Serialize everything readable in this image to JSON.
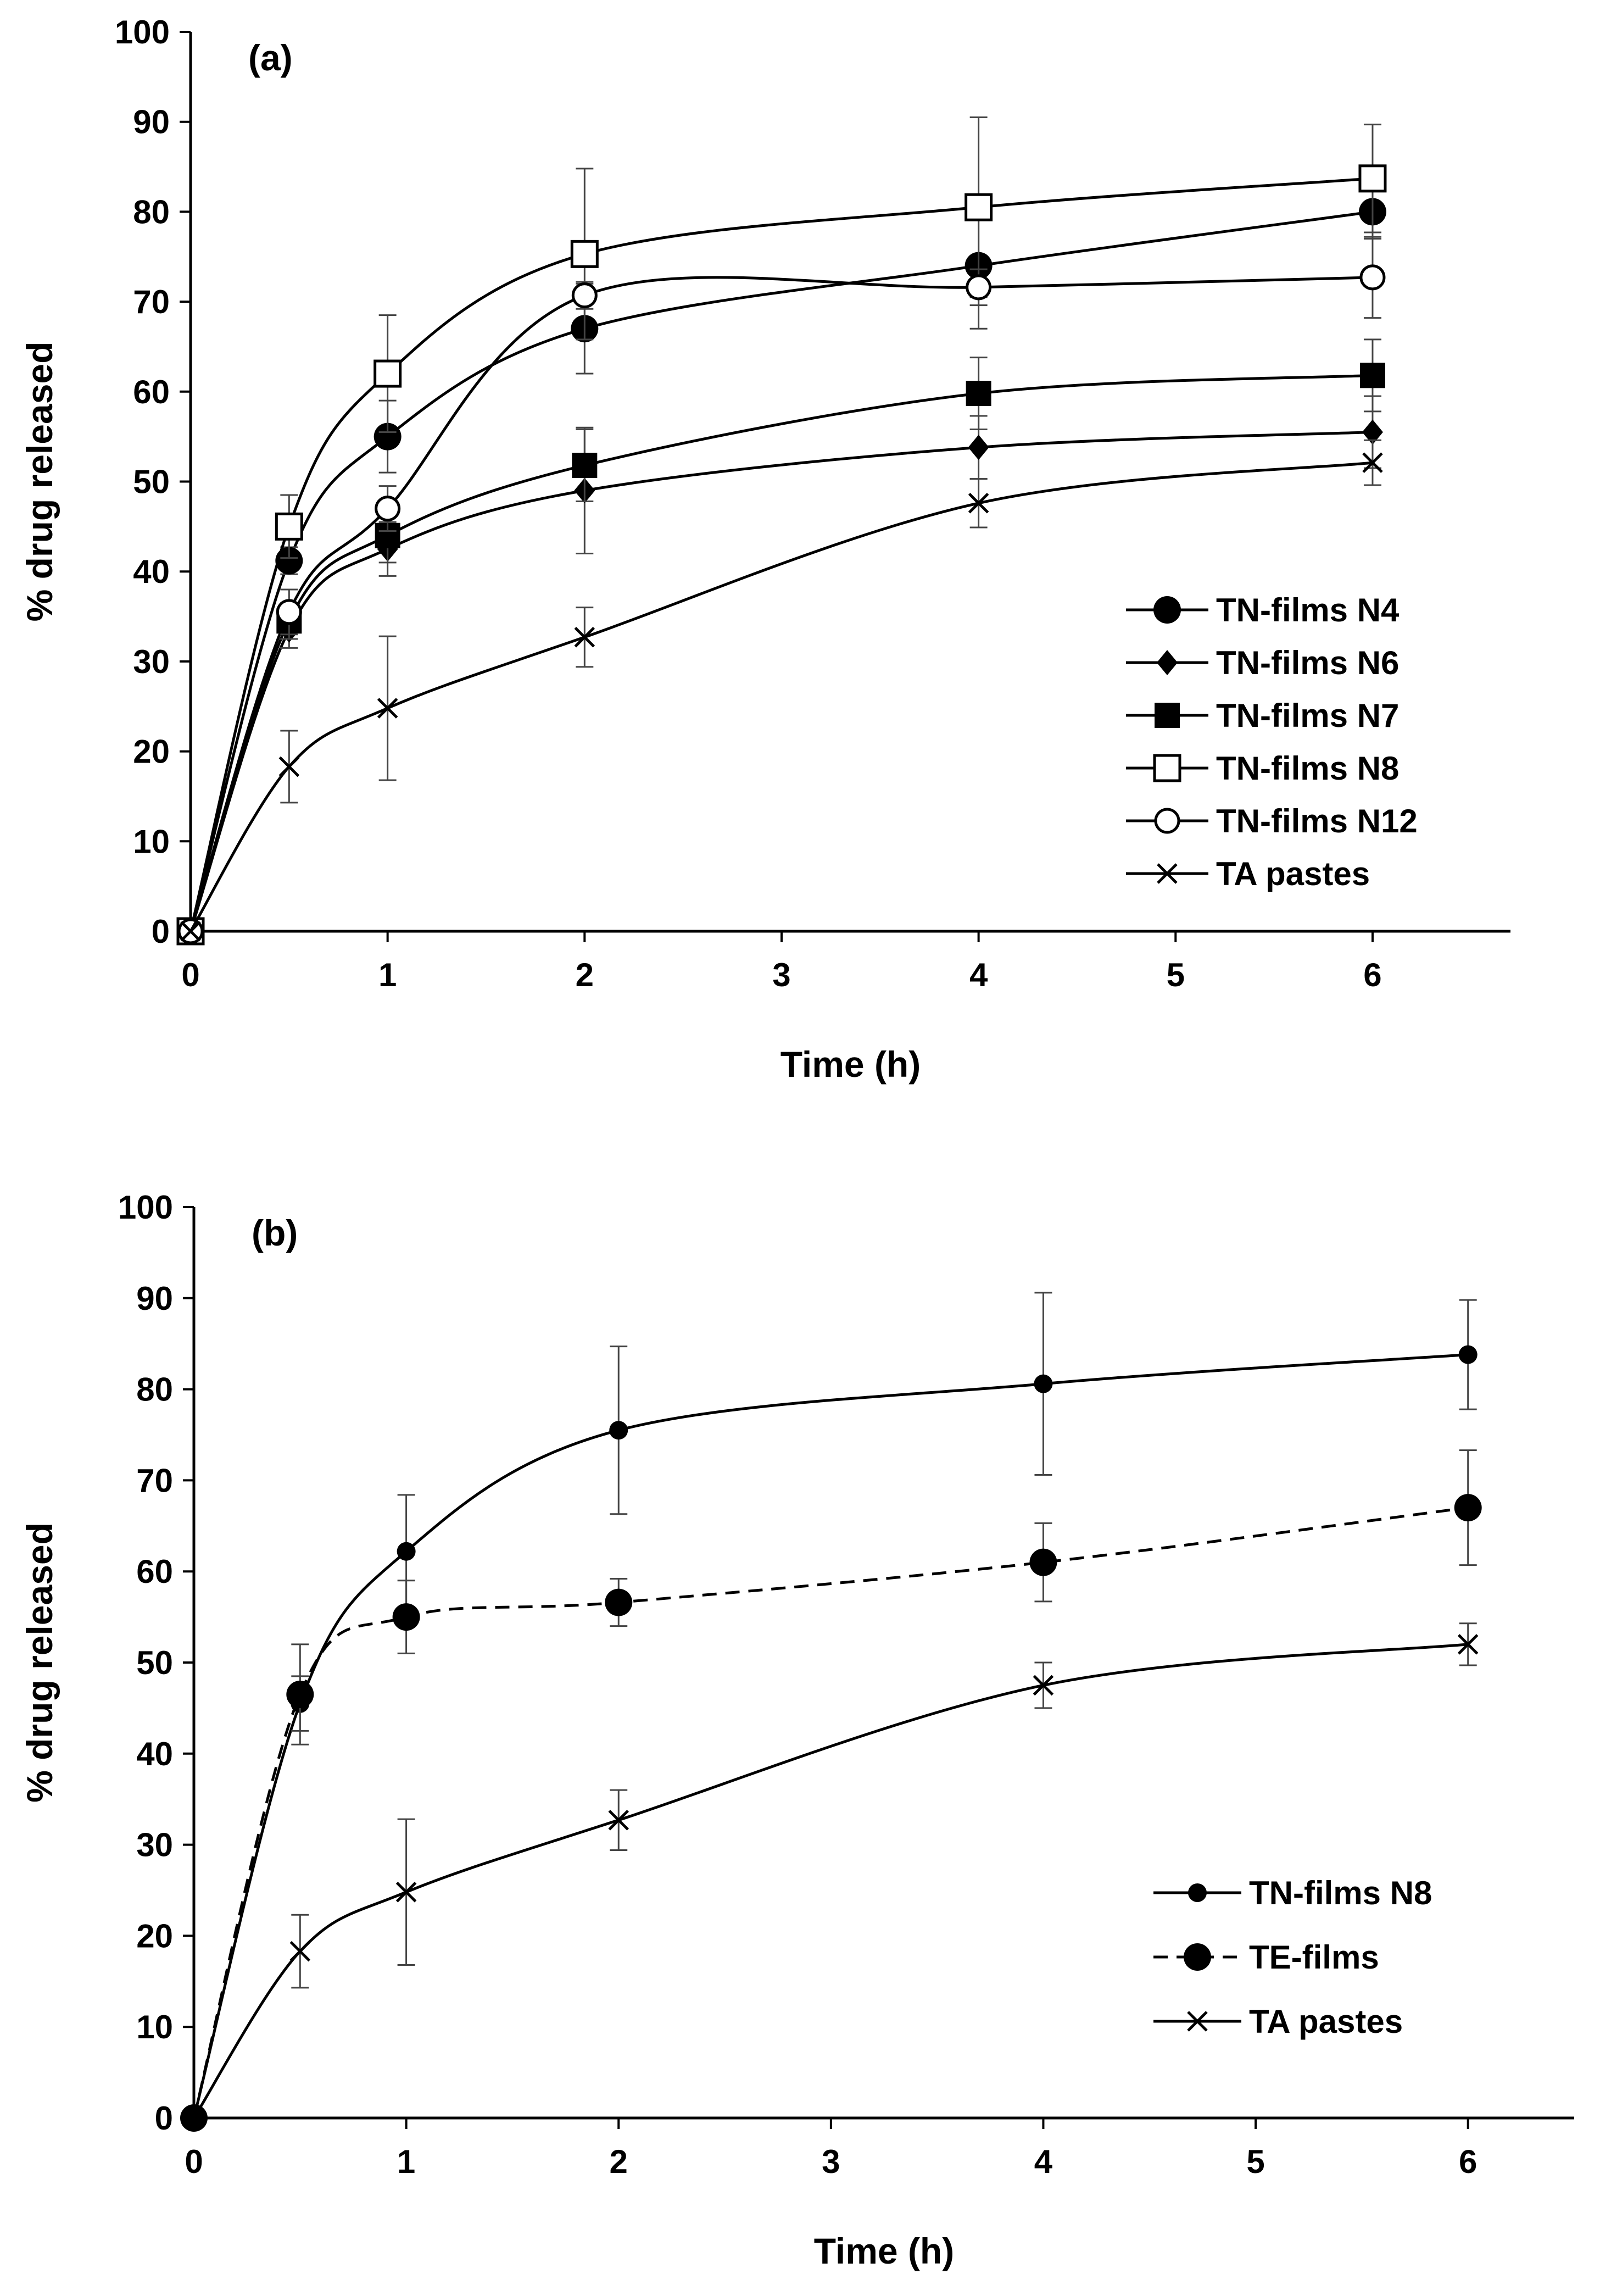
{
  "figure": {
    "panel_count": 2
  },
  "chart_data": [
    {
      "type": "line",
      "panel_label": "(a)",
      "title": "",
      "xlabel": "Time (h)",
      "ylabel": "% drug released",
      "xlim": [
        0,
        6.7
      ],
      "ylim": [
        0,
        100
      ],
      "xticks": [
        0,
        1,
        2,
        3,
        4,
        5,
        6
      ],
      "yticks": [
        0,
        10,
        20,
        30,
        40,
        50,
        60,
        70,
        80,
        90,
        100
      ],
      "grid": false,
      "legend_position": "lower-right",
      "x": [
        0,
        0.5,
        1,
        2,
        4,
        6
      ],
      "series": [
        {
          "name": "TN-films N4",
          "marker": "filled-circle",
          "dash": "solid",
          "values": [
            0,
            41.2,
            55,
            67,
            74,
            80
          ],
          "error": [
            0,
            1.5,
            4,
            5,
            7,
            3
          ]
        },
        {
          "name": "TN-films N6",
          "marker": "filled-diamond",
          "dash": "solid",
          "values": [
            0,
            33.5,
            42.5,
            49,
            53.8,
            55.5
          ],
          "error": [
            0,
            2,
            3,
            7,
            3.5,
            4
          ]
        },
        {
          "name": "TN-films N7",
          "marker": "filled-square",
          "dash": "solid",
          "values": [
            0,
            34.5,
            44,
            51.8,
            59.8,
            61.8
          ],
          "error": [
            0,
            2,
            3,
            4,
            4,
            4
          ]
        },
        {
          "name": "TN-films N8",
          "marker": "open-square",
          "dash": "solid",
          "values": [
            0,
            45,
            62,
            75.3,
            80.5,
            83.7
          ],
          "error": [
            0,
            3.5,
            6.5,
            9.5,
            10,
            6
          ]
        },
        {
          "name": "TN-films N12",
          "marker": "open-circle",
          "dash": "solid",
          "values": [
            0,
            35.5,
            47,
            70.7,
            71.6,
            72.7
          ],
          "error": [
            0,
            2.5,
            2.5,
            1.5,
            2,
            4.5
          ]
        },
        {
          "name": "TA pastes",
          "marker": "x",
          "dash": "solid",
          "values": [
            0,
            18.3,
            24.8,
            32.7,
            47.6,
            52.1
          ],
          "error": [
            0,
            4,
            8,
            3.3,
            2.7,
            2.5
          ]
        }
      ]
    },
    {
      "type": "line",
      "panel_label": "(b)",
      "title": "",
      "xlabel": "Time (h)",
      "ylabel": "% drug released",
      "xlim": [
        0,
        6.5
      ],
      "ylim": [
        0,
        100
      ],
      "xticks": [
        0,
        1,
        2,
        3,
        4,
        5,
        6
      ],
      "yticks": [
        0,
        10,
        20,
        30,
        40,
        50,
        60,
        70,
        80,
        90,
        100
      ],
      "grid": false,
      "legend_position": "lower-right",
      "x": [
        0,
        0.5,
        1,
        2,
        4,
        6
      ],
      "series": [
        {
          "name": "TN-films N8",
          "marker": "small-filled-circle",
          "dash": "solid",
          "values": [
            0,
            45.5,
            62.2,
            75.5,
            80.6,
            83.8
          ],
          "error": [
            0,
            3,
            6.2,
            9.2,
            10,
            6
          ]
        },
        {
          "name": "TE-films",
          "marker": "filled-circle",
          "dash": "dashed",
          "values": [
            0,
            46.5,
            55,
            56.6,
            61,
            67
          ],
          "error": [
            0,
            5.5,
            4,
            2.6,
            4.3,
            6.3
          ]
        },
        {
          "name": "TA pastes",
          "marker": "x",
          "dash": "solid",
          "values": [
            0,
            18.3,
            24.8,
            32.7,
            47.5,
            52
          ],
          "error": [
            0,
            4,
            8,
            3.3,
            2.5,
            2.3
          ]
        }
      ]
    }
  ]
}
